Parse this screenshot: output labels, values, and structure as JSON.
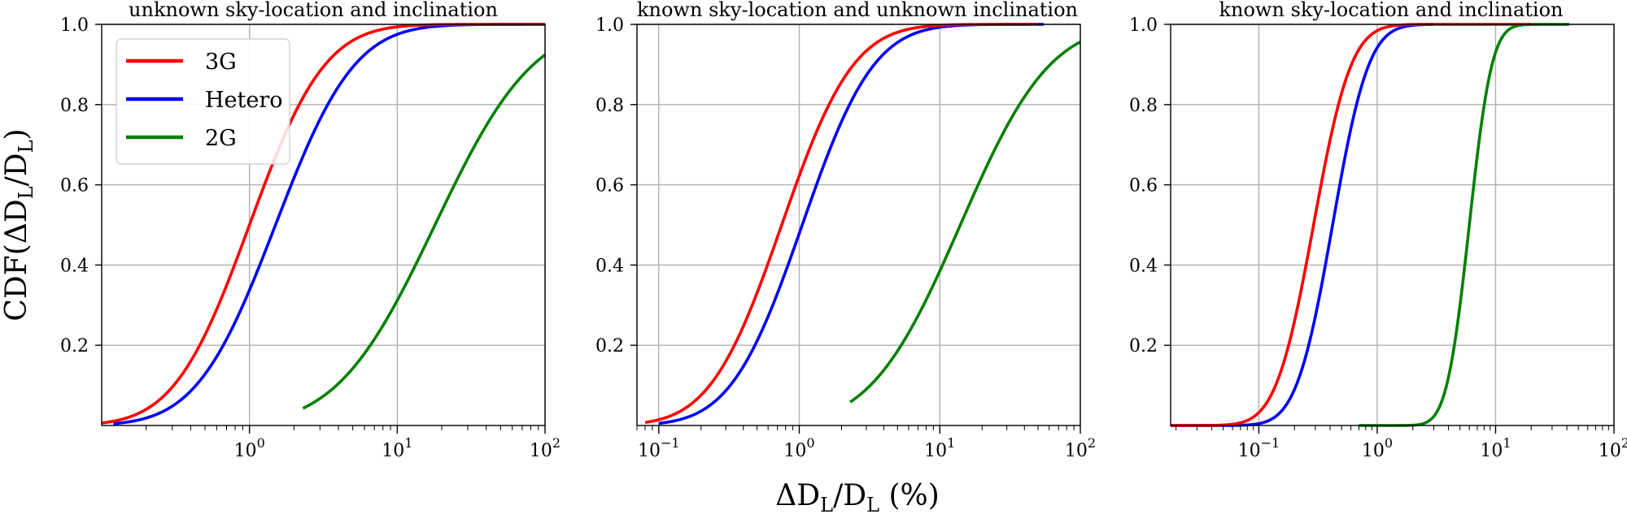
{
  "figure": {
    "ylabel_main": "CDF(ΔD",
    "ylabel_sub": "L",
    "ylabel_mid": "/D",
    "ylabel_sub2": "L",
    "ylabel_end": ")",
    "xlabel_main": "ΔD",
    "xlabel_sub": "L",
    "xlabel_mid": "/D",
    "xlabel_sub2": "L",
    "xlabel_end": " (%)"
  },
  "colors": {
    "3G": "#ff0000",
    "Hetero": "#0000ff",
    "2G": "#008000"
  },
  "legend": {
    "placement": "upper-left of first panel",
    "items": [
      {
        "label": "3G",
        "color": "#ff0000"
      },
      {
        "label": "Hetero",
        "color": "#0000ff"
      },
      {
        "label": "2G",
        "color": "#008000"
      }
    ]
  },
  "chart_data": [
    {
      "type": "line",
      "title": "unknown sky-location and inclination",
      "xscale": "log",
      "xlim": [
        0.1,
        100
      ],
      "ylim": [
        0,
        1.0
      ],
      "xticks": [
        {
          "base": "10",
          "exp": "0",
          "value": 1
        },
        {
          "base": "10",
          "exp": "1",
          "value": 10
        },
        {
          "base": "10",
          "exp": "2",
          "value": 100
        }
      ],
      "yticks": [
        "0.2",
        "0.4",
        "0.6",
        "0.8",
        "1.0"
      ],
      "grid": true,
      "series": [
        {
          "name": "3G",
          "median": 1.0,
          "width": 0.4,
          "xmin": 0.1,
          "xmax": 100
        },
        {
          "name": "Hetero",
          "median": 1.5,
          "width": 0.42,
          "xmin": 0.12,
          "xmax": 100
        },
        {
          "name": "2G",
          "median": 18,
          "width": 0.52,
          "xmin": 2.3,
          "xmax": 100
        }
      ]
    },
    {
      "type": "line",
      "title": "known sky-location and unknown inclination",
      "xscale": "log",
      "xlim": [
        0.07,
        100
      ],
      "ylim": [
        0,
        1.0
      ],
      "xticks": [
        {
          "base": "10",
          "exp": "−1",
          "value": 0.1
        },
        {
          "base": "10",
          "exp": "0",
          "value": 1
        },
        {
          "base": "10",
          "exp": "1",
          "value": 10
        },
        {
          "base": "10",
          "exp": "2",
          "value": 100
        }
      ],
      "yticks": [
        "0.2",
        "0.4",
        "0.6",
        "0.8",
        "1.0"
      ],
      "grid": true,
      "series": [
        {
          "name": "3G",
          "median": 0.75,
          "width": 0.4,
          "xmin": 0.08,
          "xmax": 50
        },
        {
          "name": "Hetero",
          "median": 1.05,
          "width": 0.4,
          "xmin": 0.1,
          "xmax": 55
        },
        {
          "name": "2G",
          "median": 14,
          "width": 0.5,
          "xmin": 2.3,
          "xmax": 100
        }
      ]
    },
    {
      "type": "line",
      "title": "known sky-location and inclination",
      "xscale": "log",
      "xlim": [
        0.018,
        100
      ],
      "ylim": [
        0,
        1.0
      ],
      "xticks": [
        {
          "base": "10",
          "exp": "−1",
          "value": 0.1
        },
        {
          "base": "10",
          "exp": "0",
          "value": 1
        },
        {
          "base": "10",
          "exp": "1",
          "value": 10
        },
        {
          "base": "10",
          "exp": "2",
          "value": 100
        }
      ],
      "yticks": [
        "0.2",
        "0.4",
        "0.6",
        "0.8",
        "1.0"
      ],
      "grid": true,
      "series": [
        {
          "name": "3G",
          "median": 0.29,
          "width": 0.25,
          "xmin": 0.018,
          "xmax": 20
        },
        {
          "name": "Hetero",
          "median": 0.42,
          "width": 0.24,
          "xmin": 0.018,
          "xmax": 3
        },
        {
          "name": "2G",
          "median": 6.0,
          "width": 0.15,
          "xmin": 0.7,
          "xmax": 42
        }
      ]
    }
  ]
}
